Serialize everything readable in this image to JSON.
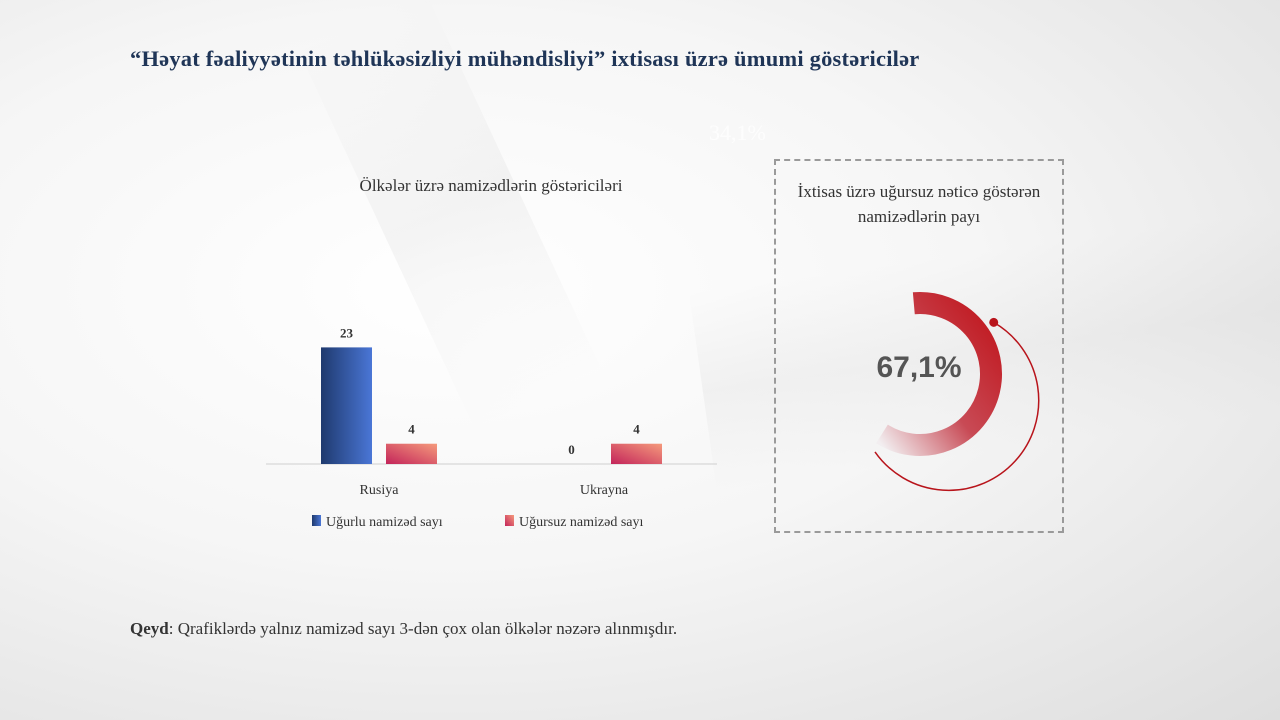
{
  "slide": {
    "title": "“Həyat fəaliyyətinin təhlükəsizliyi mühəndisliyi” ixtisası üzrə ümumi göstəricilər",
    "ghost_label": "34,1%"
  },
  "chart_data": [
    {
      "type": "bar",
      "title": "Ölkələr üzrə namizədlərin göstəriciləri",
      "categories": [
        "Rusiya",
        "Ukrayna"
      ],
      "series": [
        {
          "name": "Uğurlu namizəd sayı",
          "values": [
            23,
            0
          ]
        },
        {
          "name": "Uğursuz namizəd sayı",
          "values": [
            4,
            4
          ]
        }
      ],
      "ylim": [
        0,
        45
      ],
      "grid": false,
      "legend": "bottom",
      "colors": {
        "success": "#3a66c4",
        "success_dark": "#1f3a6e",
        "fail_from": "#c3245a",
        "fail_to": "#f4937a"
      }
    },
    {
      "type": "pie",
      "title": "İxtisas üzrə uğursuz nəticə göstərən namizədlərin payı",
      "value_percent": 67.1,
      "value_label": "67,1%",
      "colors": {
        "ring": "#c0151c",
        "ring_light": "#e8e0e4"
      }
    }
  ],
  "note": {
    "prefix": "Qeyd",
    "text": ": Qrafiklərdə yalnız namizəd sayı 3-dən çox olan ölkələr nəzərə alınmışdır."
  }
}
